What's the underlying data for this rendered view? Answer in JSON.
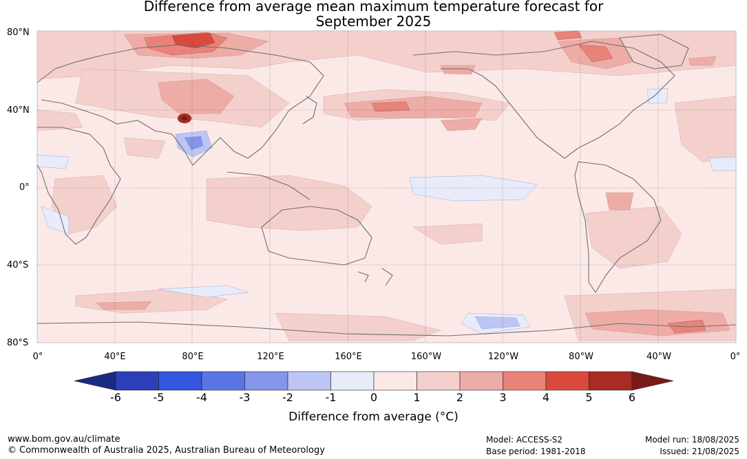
{
  "title_line1": "Difference from average mean maximum temperature forecast for",
  "title_line2": "September 2025",
  "lat_labels": [
    "80°N",
    "40°N",
    "0°",
    "40°S",
    "80°S"
  ],
  "lon_labels": [
    "0°",
    "40°E",
    "80°E",
    "120°E",
    "160°E",
    "160°W",
    "120°W",
    "80°W",
    "40°W",
    "0°"
  ],
  "colorbar": {
    "label": "Difference from average (°C)",
    "ticks": [
      "-6",
      "-5",
      "-4",
      "-3",
      "-2",
      "-1",
      "0",
      "1",
      "2",
      "3",
      "4",
      "5",
      "6"
    ],
    "colors": [
      "#1a2a80",
      "#2a3fb8",
      "#3556e0",
      "#5b74e4",
      "#8595ea",
      "#bcc5f3",
      "#e8ecfa",
      "#fbe9e8",
      "#f4d0cd",
      "#eeaca7",
      "#e98379",
      "#d94a3d",
      "#a82b24",
      "#7a1a16"
    ]
  },
  "footer": {
    "website": "www.bom.gov.au/climate",
    "copyright": "© Commonwealth of Australia 2025, Australian Bureau of Meteorology",
    "model": "Model: ACCESS-S2",
    "base_period": "Base period: 1981-2018",
    "model_run": "Model run: 18/08/2025",
    "issued": "Issued: 21/08/2025"
  }
}
